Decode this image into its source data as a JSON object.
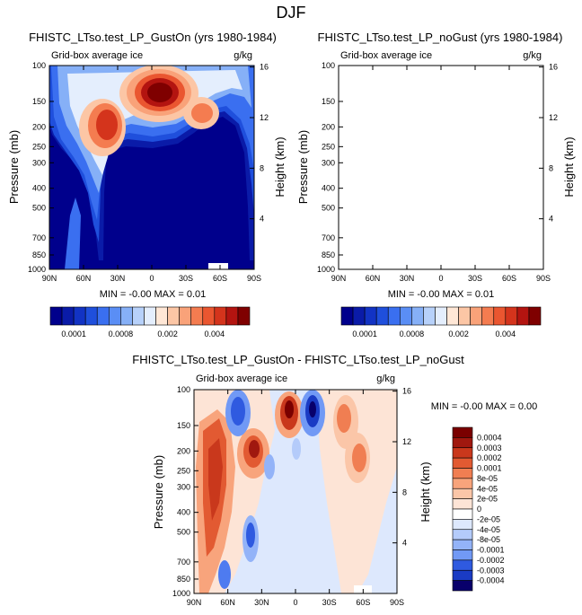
{
  "figure": {
    "title": "DJF"
  },
  "palette": {
    "levels": [
      "#00008c",
      "#0a1ba8",
      "#1233c4",
      "#1f4fdc",
      "#3a6ff0",
      "#5a8ef5",
      "#86b0f7",
      "#b7d1fa",
      "#e4eefd",
      "#ffe7d6",
      "#fcc6a5",
      "#f9a279",
      "#f47c50",
      "#ea5630",
      "#d4341c",
      "#b31410",
      "#7f0000"
    ],
    "diff_levels": [
      "#08006b",
      "#0b1d9e",
      "#1a3bc4",
      "#2f5ae0",
      "#4e7bf0",
      "#7199f5",
      "#93b3f8",
      "#b4cbfa",
      "#dde8fd",
      "#ffffff",
      "#fde4d6",
      "#fbc6a8",
      "#f8a47c",
      "#f07e52",
      "#e25a32",
      "#c9381c",
      "#a0180f",
      "#7a0000"
    ]
  },
  "chart_data": [
    {
      "type": "heatmap",
      "title": "FHISTC_LTso.test_LP_GustOn (yrs 1980-1984)",
      "left_label": "Grid-box average ice",
      "right_label": "g/kg",
      "ylabel": "Pressure (mb)",
      "ylabel_right": "Height (km)",
      "x_ticks": [
        "90N",
        "60N",
        "30N",
        "0",
        "30S",
        "60S",
        "90S"
      ],
      "x_values": [
        90,
        60,
        30,
        0,
        -30,
        -60,
        -90
      ],
      "y_ticks": [
        "100",
        "150",
        "200",
        "250",
        "300",
        "400",
        "500",
        "700",
        "850",
        "1000"
      ],
      "y_values": [
        100,
        150,
        200,
        250,
        300,
        400,
        500,
        700,
        850,
        1000
      ],
      "height_ticks": [
        "16",
        "12",
        "8",
        "4"
      ],
      "height_values": [
        16,
        12,
        8,
        4
      ],
      "stats": "MIN =  -0.00  MAX =  0.01",
      "colorbar_labels": [
        "0.0001",
        "0.0008",
        "0.002",
        "0.004"
      ],
      "colorbar_label_slots": [
        1,
        5,
        9,
        13
      ]
    },
    {
      "type": "heatmap",
      "title": "FHISTC_LTso.test_LP_noGust (yrs 1980-1984)",
      "left_label": "Grid-box average ice",
      "right_label": "g/kg",
      "ylabel": "Pressure (mb)",
      "ylabel_right": "Height (km)",
      "x_ticks": [
        "90N",
        "60N",
        "30N",
        "0",
        "30S",
        "60S",
        "90S"
      ],
      "x_values": [
        90,
        60,
        30,
        0,
        -30,
        -60,
        -90
      ],
      "y_ticks": [
        "100",
        "150",
        "200",
        "250",
        "300",
        "400",
        "500",
        "700",
        "850",
        "1000"
      ],
      "y_values": [
        100,
        150,
        200,
        250,
        300,
        400,
        500,
        700,
        850,
        1000
      ],
      "height_ticks": [
        "16",
        "12",
        "8",
        "4"
      ],
      "height_values": [
        16,
        12,
        8,
        4
      ],
      "stats": "MIN =  -0.00  MAX =  0.01",
      "colorbar_labels": [
        "0.0001",
        "0.0008",
        "0.002",
        "0.004"
      ],
      "colorbar_label_slots": [
        1,
        5,
        9,
        13
      ]
    },
    {
      "type": "heatmap",
      "title": "FHISTC_LTso.test_LP_GustOn - FHISTC_LTso.test_LP_noGust",
      "left_label": "Grid-box average ice",
      "right_label": "g/kg",
      "ylabel": "Pressure (mb)",
      "ylabel_right": "Height (km)",
      "x_ticks": [
        "90N",
        "60N",
        "30N",
        "0",
        "30S",
        "60S",
        "90S"
      ],
      "x_values": [
        90,
        60,
        30,
        0,
        -30,
        -60,
        -90
      ],
      "y_ticks": [
        "100",
        "150",
        "200",
        "250",
        "300",
        "400",
        "500",
        "700",
        "850",
        "1000"
      ],
      "y_values": [
        100,
        150,
        200,
        250,
        300,
        400,
        500,
        700,
        850,
        1000
      ],
      "height_ticks": [
        "16",
        "12",
        "8",
        "4"
      ],
      "height_values": [
        16,
        12,
        8,
        4
      ],
      "stats": "MIN =  -0.00  MAX =  0.00",
      "colorbar_labels": [
        "0.0004",
        "0.0003",
        "0.0002",
        "0.0001",
        "8e-05",
        "4e-05",
        "2e-05",
        "0",
        "-2e-05",
        "-4e-05",
        "-8e-05",
        "-0.0001",
        "-0.0002",
        "-0.0003",
        "-0.0004"
      ]
    }
  ]
}
